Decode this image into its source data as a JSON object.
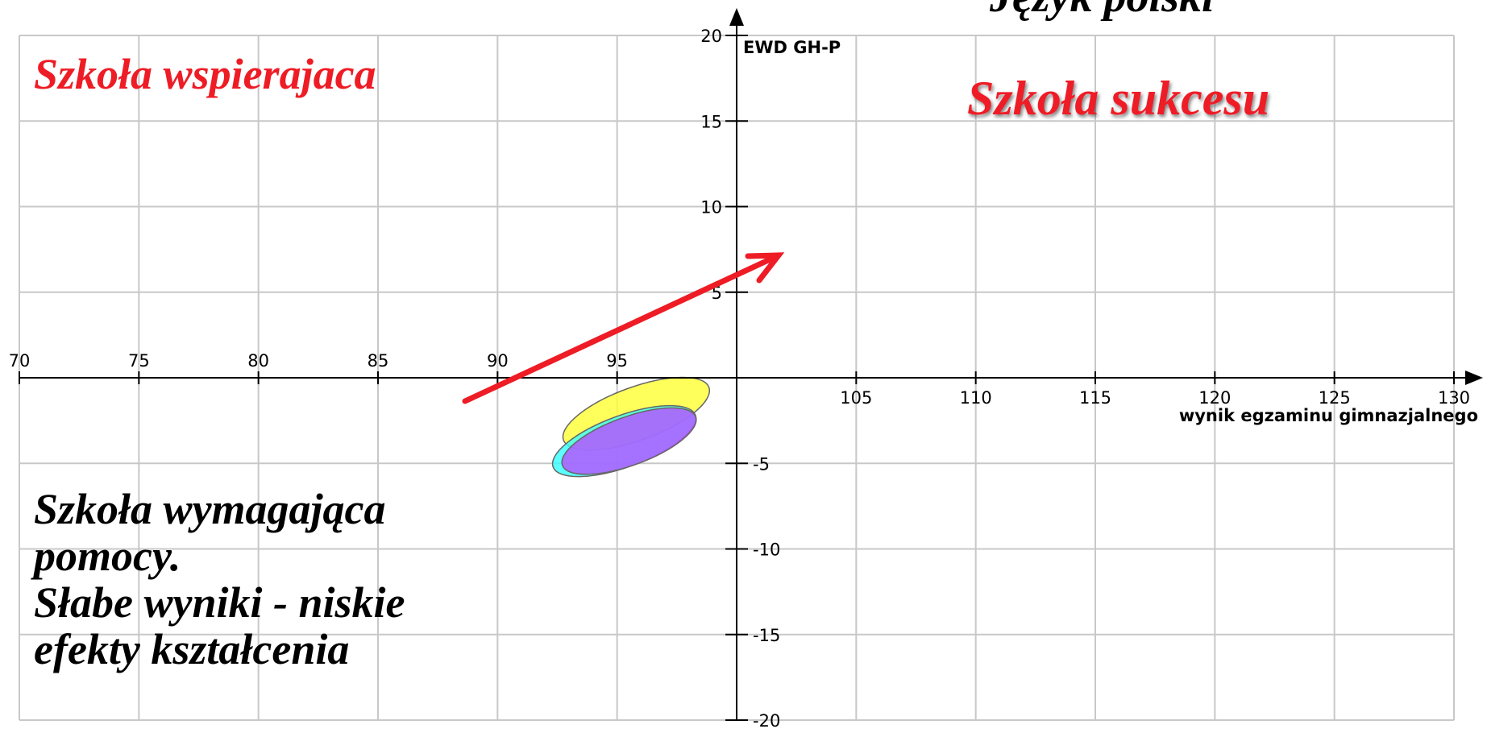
{
  "chart_data": {
    "type": "ellipse-scatter",
    "title": "Język polski",
    "x_label": "wynik egzaminu gimnazjalnego",
    "y_label": "EWD GH-P",
    "annotations": [
      "Szkoła wspierajaca",
      "Szkoła sukcesu",
      "Szkoła wymagająca",
      "pomocy.",
      "Słabe wyniki - niskie",
      "efekty kształcenia"
    ],
    "series": [
      {
        "color": "#ffff33",
        "x": 95.8,
        "y": -2.1
      },
      {
        "color": "#33ffff",
        "x": 95.3,
        "y": -3.7
      },
      {
        "color": "#b84dff",
        "x": 95.5,
        "y": -3.7
      }
    ],
    "xlim": [
      70,
      130
    ],
    "ylim": [
      -20,
      20
    ],
    "xticks": [
      70,
      75,
      80,
      85,
      90,
      95,
      105,
      110,
      115,
      120,
      125,
      130
    ],
    "yticks": [
      20,
      15,
      10,
      5,
      -5,
      -10,
      -15,
      -20
    ],
    "grid": true
  }
}
